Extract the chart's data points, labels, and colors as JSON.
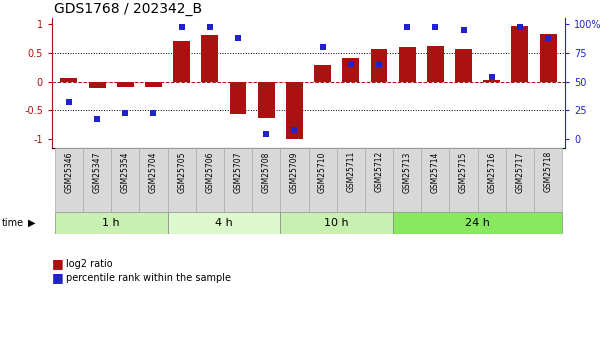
{
  "title": "GDS1768 / 202342_B",
  "samples": [
    "GSM25346",
    "GSM25347",
    "GSM25354",
    "GSM25704",
    "GSM25705",
    "GSM25706",
    "GSM25707",
    "GSM25708",
    "GSM25709",
    "GSM25710",
    "GSM25711",
    "GSM25712",
    "GSM25713",
    "GSM25714",
    "GSM25715",
    "GSM25716",
    "GSM25717",
    "GSM25718"
  ],
  "log2_ratio": [
    0.07,
    -0.12,
    -0.1,
    -0.1,
    0.7,
    0.8,
    -0.57,
    -0.63,
    -1.0,
    0.28,
    0.4,
    0.57,
    0.6,
    0.62,
    0.57,
    0.03,
    0.97,
    0.82
  ],
  "percentile": [
    0.32,
    0.18,
    0.23,
    0.23,
    0.97,
    0.97,
    0.88,
    0.05,
    0.08,
    0.8,
    0.65,
    0.65,
    0.97,
    0.97,
    0.95,
    0.54,
    0.97,
    0.88
  ],
  "time_groups": [
    {
      "label": "1 h",
      "start": 0,
      "end": 4,
      "color": "#c8f0b0"
    },
    {
      "label": "4 h",
      "start": 4,
      "end": 8,
      "color": "#ddf8cc"
    },
    {
      "label": "10 h",
      "start": 8,
      "end": 12,
      "color": "#c8f0b0"
    },
    {
      "label": "24 h",
      "start": 12,
      "end": 18,
      "color": "#88e860"
    }
  ],
  "bar_color": "#aa1111",
  "dot_color": "#2222cc",
  "bg_color": "#ffffff",
  "left_ytick_vals": [
    -1,
    -0.5,
    0,
    0.5,
    1
  ],
  "left_ytick_labels": [
    "-1",
    "-0.5",
    "0",
    "0.5",
    "1"
  ],
  "right_ytick_labels": [
    "0",
    "25",
    "50",
    "75",
    "100%"
  ],
  "ylim": [
    -1.15,
    1.1
  ],
  "hline_red": 0.0,
  "hline_black": [
    0.5,
    -0.5
  ],
  "legend_items": [
    "log2 ratio",
    "percentile rank within the sample"
  ],
  "title_fontsize": 10,
  "tick_fontsize": 7,
  "sample_fontsize": 5.5,
  "time_fontsize": 8,
  "legend_fontsize": 7,
  "label_cell_color": "#d8d8d8",
  "label_cell_edgecolor": "#aaaaaa"
}
